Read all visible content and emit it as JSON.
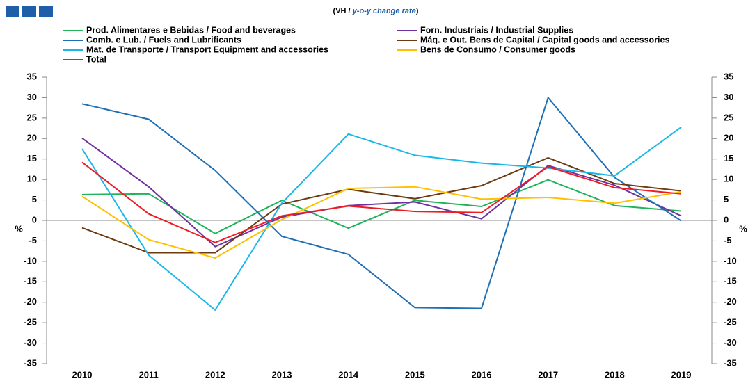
{
  "chart_data": {
    "type": "line",
    "subtitle": [
      "(VH / ",
      "y-o-y change rate",
      ")"
    ],
    "y_axis_label": "%",
    "categories": [
      "2010",
      "2011",
      "2012",
      "2013",
      "2014",
      "2015",
      "2016",
      "2017",
      "2018",
      "2019"
    ],
    "ylim": [
      -35,
      35
    ],
    "yticks": [
      -35,
      -30,
      -25,
      -20,
      -15,
      -10,
      -5,
      0,
      5,
      10,
      15,
      20,
      25,
      30,
      35
    ],
    "series": [
      {
        "name": "Prod. Alimentares e Bebidas / Food and beverages",
        "color": "#1fb35a",
        "values": [
          6.3,
          6.5,
          -3.2,
          4.9,
          -1.9,
          4.9,
          3.4,
          9.9,
          3.6,
          2.3
        ]
      },
      {
        "name": "Forn. Industriais / Industrial Supplies",
        "color": "#7030a0",
        "values": [
          20.1,
          8.2,
          -6.4,
          0.8,
          3.6,
          4.5,
          0.4,
          13.4,
          8.6,
          1.1
        ]
      },
      {
        "name": "Comb. e Lub. /  Fuels and Lubrificants",
        "color": "#1f6fb5",
        "values": [
          28.5,
          24.7,
          12.2,
          -3.9,
          -8.3,
          -21.3,
          -21.5,
          30.0,
          10.5,
          -0.1
        ]
      },
      {
        "name": "Máq. e Out. Bens de Capital / Capital goods and accessories",
        "color": "#6b3a0f",
        "values": [
          -1.8,
          -7.9,
          -7.9,
          4.0,
          7.6,
          5.3,
          8.5,
          15.3,
          9.0,
          7.2
        ]
      },
      {
        "name": "Mat. de Transporte / Transport Equipment and accessories",
        "color": "#1ab8e8",
        "values": [
          17.5,
          -8.5,
          -21.9,
          4.2,
          21.1,
          15.9,
          14.0,
          12.8,
          10.9,
          22.8
        ]
      },
      {
        "name": "Bens de Consumo / Consumer goods",
        "color": "#ffc000",
        "values": [
          5.9,
          -4.7,
          -9.2,
          0.2,
          7.8,
          8.2,
          5.2,
          5.6,
          4.2,
          7.0
        ]
      },
      {
        "name": "Total",
        "color": "#ee1c25",
        "values": [
          14.2,
          1.6,
          -5.4,
          1.1,
          3.5,
          2.2,
          1.9,
          13.1,
          8.0,
          6.5
        ]
      }
    ]
  }
}
